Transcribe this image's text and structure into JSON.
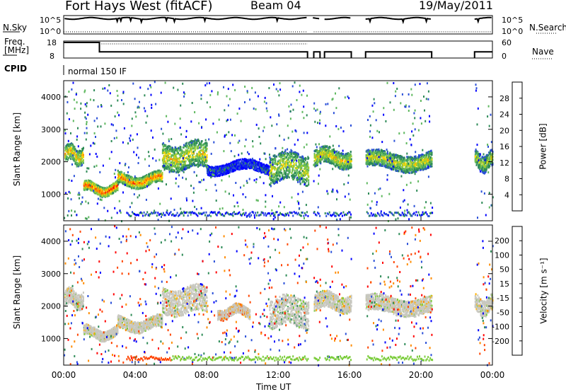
{
  "header": {
    "site": "Fort Hays West (fitACF)",
    "beam": "Beam 04",
    "date": "19/May/2011"
  },
  "status_panels": {
    "nsky_label": "N.Sky",
    "nsky_ticks": [
      "10^5",
      "10^0"
    ],
    "nsearch_label": "N.Search",
    "nsearch_ticks": [
      "10^5",
      "10^0"
    ],
    "freq_label": "Freq.",
    "freq_unit": "[MHz]",
    "freq_ticks": [
      "18",
      "8"
    ],
    "nave_label": "Nave",
    "nave_ticks": [
      "60",
      "0"
    ],
    "cpid_label": "CPID",
    "cpid_value": "normal 150 IF"
  },
  "chart_data": [
    {
      "type": "heatmap",
      "panel": "power",
      "ylabel": "Slant Range [km]",
      "yticks": [
        1000,
        2000,
        3000,
        4000
      ],
      "ylim": [
        180,
        4500
      ],
      "xlim_hours": [
        0,
        24
      ],
      "colorbar_label": "Power [dB]",
      "colorbar_ticks": [
        "28",
        "24",
        "20",
        "16",
        "12",
        "8",
        "4"
      ],
      "colormap": [
        "#0000ff",
        "#2a4fd8",
        "#2e8b57",
        "#5fb85f",
        "#9acd32",
        "#ffd700",
        "#ff8c00",
        "#ff4500",
        "#ff0000"
      ],
      "bands": [
        {
          "t0": 0.05,
          "t1": 1.1,
          "r0": 2000,
          "r1": 2500,
          "level": 0.65
        },
        {
          "t0": 1.1,
          "t1": 3.0,
          "r0": 1050,
          "r1": 1350,
          "level": 0.85
        },
        {
          "t0": 3.0,
          "t1": 5.5,
          "r0": 1300,
          "r1": 1650,
          "level": 0.75
        },
        {
          "t0": 5.5,
          "t1": 8.0,
          "r0": 1800,
          "r1": 2600,
          "level": 0.6
        },
        {
          "t0": 8.0,
          "t1": 11.5,
          "r0": 1700,
          "r1": 2000,
          "level": 0.15
        },
        {
          "t0": 11.5,
          "t1": 13.7,
          "r0": 1400,
          "r1": 2300,
          "level": 0.55
        },
        {
          "t0": 14.0,
          "t1": 16.1,
          "r0": 1900,
          "r1": 2400,
          "level": 0.6
        },
        {
          "t0": 16.9,
          "t1": 20.6,
          "r0": 1800,
          "r1": 2300,
          "level": 0.55
        },
        {
          "t0": 23.0,
          "t1": 24.0,
          "r0": 1800,
          "r1": 2300,
          "level": 0.5
        }
      ]
    },
    {
      "type": "heatmap",
      "panel": "velocity",
      "ylabel": "Slant Range [km]",
      "yticks": [
        1000,
        2000,
        3000,
        4000
      ],
      "ylim": [
        180,
        4500
      ],
      "xlim_hours": [
        0,
        24
      ],
      "xticks": [
        "00:00",
        "04:00",
        "08:00",
        "12:00",
        "16:00",
        "20:00",
        "00:00"
      ],
      "xlabel": "Time UT",
      "colorbar_label": "Velocity [m s⁻¹]",
      "colorbar_ticks": [
        "200",
        "100",
        "50",
        "15",
        "-15",
        "-50",
        "-100",
        "-200"
      ],
      "colormap": [
        "#ff0000",
        "#ff4500",
        "#ff8c00",
        "#ffb000",
        "#c8c8c0",
        "#7ccd3c",
        "#2e8b57",
        "#2a4fd8",
        "#0000ff"
      ],
      "bands": [
        {
          "t0": 0.05,
          "t1": 1.1,
          "r0": 2000,
          "r1": 2500,
          "level": 0.5
        },
        {
          "t0": 1.1,
          "t1": 3.0,
          "r0": 1050,
          "r1": 1350,
          "level": 0.5
        },
        {
          "t0": 3.0,
          "t1": 5.5,
          "r0": 1300,
          "r1": 1650,
          "level": 0.5
        },
        {
          "t0": 5.5,
          "t1": 8.0,
          "r0": 1800,
          "r1": 2600,
          "level": 0.5
        },
        {
          "t0": 8.6,
          "t1": 10.4,
          "r0": 1700,
          "r1": 2000,
          "level": 0.3
        },
        {
          "t0": 11.5,
          "t1": 13.7,
          "r0": 1400,
          "r1": 2300,
          "level": 0.6
        },
        {
          "t0": 14.0,
          "t1": 16.1,
          "r0": 1900,
          "r1": 2400,
          "level": 0.5
        },
        {
          "t0": 16.9,
          "t1": 20.6,
          "r0": 1800,
          "r1": 2300,
          "level": 0.5
        },
        {
          "t0": 23.0,
          "t1": 24.0,
          "r0": 1800,
          "r1": 2300,
          "level": 0.5
        }
      ]
    }
  ]
}
